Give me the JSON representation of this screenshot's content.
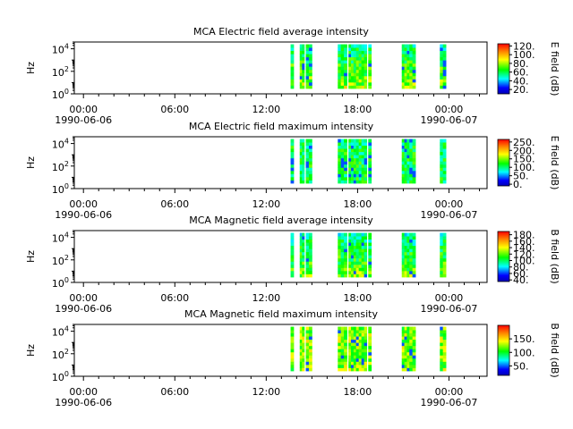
{
  "chart_data": [
    {
      "type": "heatmap",
      "title": "MCA  Electric field average intensity",
      "ylabel": "Hz",
      "y_scale": "log",
      "ylim": [
        1,
        40000
      ],
      "y_ticks": [
        {
          "v": 1,
          "b": "10",
          "e": "0"
        },
        {
          "v": 100,
          "b": "10",
          "e": "2"
        },
        {
          "v": 10000,
          "b": "10",
          "e": "4"
        }
      ],
      "x_ticks": [
        {
          "h": 0,
          "label": "00:00",
          "date": "1990-06-06"
        },
        {
          "h": 6,
          "label": "06:00",
          "date": ""
        },
        {
          "h": 12,
          "label": "12:00",
          "date": ""
        },
        {
          "h": 18,
          "label": "18:00",
          "date": ""
        },
        {
          "h": 24,
          "label": "00:00",
          "date": "1990-06-07"
        }
      ],
      "xlim_hours": [
        -0.6,
        26.5
      ],
      "colorbar": {
        "label": "E field (dB)",
        "min": 10,
        "max": 125,
        "ticks": [
          20,
          40,
          60,
          80,
          100,
          120
        ],
        "tick_labels": [
          "20.",
          "40.",
          "60.",
          "80.",
          "100.",
          "120."
        ]
      },
      "data_segments_hours": [
        [
          13.6,
          13.8
        ],
        [
          14.2,
          14.5
        ],
        [
          14.6,
          15.0
        ],
        [
          16.7,
          17.3
        ],
        [
          17.4,
          17.9
        ],
        [
          17.9,
          18.6
        ],
        [
          18.7,
          18.9
        ],
        [
          20.9,
          21.4
        ],
        [
          21.4,
          21.8
        ],
        [
          23.4,
          23.8
        ]
      ],
      "level": 68
    },
    {
      "type": "heatmap",
      "title": "MCA  Electric field maximum intensity",
      "ylabel": "Hz",
      "y_scale": "log",
      "ylim": [
        1,
        40000
      ],
      "y_ticks": [
        {
          "v": 1,
          "b": "10",
          "e": "0"
        },
        {
          "v": 100,
          "b": "10",
          "e": "2"
        },
        {
          "v": 10000,
          "b": "10",
          "e": "4"
        }
      ],
      "x_ticks": [
        {
          "h": 0,
          "label": "00:00",
          "date": "1990-06-06"
        },
        {
          "h": 6,
          "label": "06:00",
          "date": ""
        },
        {
          "h": 12,
          "label": "12:00",
          "date": ""
        },
        {
          "h": 18,
          "label": "18:00",
          "date": ""
        },
        {
          "h": 24,
          "label": "00:00",
          "date": "1990-06-07"
        }
      ],
      "xlim_hours": [
        -0.6,
        26.5
      ],
      "colorbar": {
        "label": "E field (dB)",
        "min": -10,
        "max": 265,
        "ticks": [
          0,
          50,
          100,
          150,
          200,
          250
        ],
        "tick_labels": [
          "0.",
          "50.",
          "100.",
          "150.",
          "200.",
          "250."
        ]
      },
      "data_segments_hours": [
        [
          13.6,
          13.8
        ],
        [
          14.2,
          14.5
        ],
        [
          14.6,
          15.0
        ],
        [
          16.7,
          17.3
        ],
        [
          17.4,
          17.9
        ],
        [
          17.9,
          18.6
        ],
        [
          18.7,
          18.9
        ],
        [
          20.9,
          21.4
        ],
        [
          21.4,
          21.8
        ],
        [
          23.4,
          23.8
        ]
      ],
      "level": 110
    },
    {
      "type": "heatmap",
      "title": "MCA  Magnetic field average intensity",
      "ylabel": "Hz",
      "y_scale": "log",
      "ylim": [
        1,
        40000
      ],
      "y_ticks": [
        {
          "v": 1,
          "b": "10",
          "e": "0"
        },
        {
          "v": 100,
          "b": "10",
          "e": "2"
        },
        {
          "v": 10000,
          "b": "10",
          "e": "4"
        }
      ],
      "x_ticks": [
        {
          "h": 0,
          "label": "00:00",
          "date": "1990-06-06"
        },
        {
          "h": 6,
          "label": "06:00",
          "date": ""
        },
        {
          "h": 12,
          "label": "12:00",
          "date": ""
        },
        {
          "h": 18,
          "label": "18:00",
          "date": ""
        },
        {
          "h": 24,
          "label": "00:00",
          "date": "1990-06-07"
        }
      ],
      "xlim_hours": [
        -0.6,
        26.5
      ],
      "colorbar": {
        "label": "B field (dB)",
        "min": 35,
        "max": 190,
        "ticks": [
          40,
          60,
          80,
          100,
          120,
          140,
          160,
          180
        ],
        "tick_labels": [
          "40.",
          "60.",
          "80.",
          "100.",
          "120.",
          "140.",
          "160.",
          "180."
        ]
      },
      "data_segments_hours": [
        [
          13.6,
          13.8
        ],
        [
          14.2,
          14.5
        ],
        [
          14.6,
          15.0
        ],
        [
          16.7,
          17.3
        ],
        [
          17.4,
          17.9
        ],
        [
          17.9,
          18.6
        ],
        [
          18.7,
          18.9
        ],
        [
          20.9,
          21.4
        ],
        [
          21.4,
          21.8
        ],
        [
          23.4,
          23.8
        ]
      ],
      "level": 108
    },
    {
      "type": "heatmap",
      "title": "MCA  Magnetic field maximum intensity",
      "ylabel": "Hz",
      "y_scale": "log",
      "ylim": [
        1,
        40000
      ],
      "y_ticks": [
        {
          "v": 1,
          "b": "10",
          "e": "0"
        },
        {
          "v": 100,
          "b": "10",
          "e": "2"
        },
        {
          "v": 10000,
          "b": "10",
          "e": "4"
        }
      ],
      "x_ticks": [
        {
          "h": 0,
          "label": "00:00",
          "date": "1990-06-06"
        },
        {
          "h": 6,
          "label": "06:00",
          "date": ""
        },
        {
          "h": 12,
          "label": "12:00",
          "date": ""
        },
        {
          "h": 18,
          "label": "18:00",
          "date": ""
        },
        {
          "h": 24,
          "label": "00:00",
          "date": "1990-06-07"
        }
      ],
      "xlim_hours": [
        -0.6,
        26.5
      ],
      "colorbar": {
        "label": "B field (dB)",
        "min": 15,
        "max": 200,
        "ticks": [
          50,
          100,
          150
        ],
        "tick_labels": [
          "50.",
          "100.",
          "150."
        ]
      },
      "data_segments_hours": [
        [
          13.6,
          13.8
        ],
        [
          14.2,
          14.5
        ],
        [
          14.6,
          15.0
        ],
        [
          16.7,
          17.3
        ],
        [
          17.4,
          17.9
        ],
        [
          17.9,
          18.6
        ],
        [
          18.7,
          18.9
        ],
        [
          20.9,
          21.4
        ],
        [
          21.4,
          21.8
        ],
        [
          23.4,
          23.8
        ]
      ],
      "level": 128
    }
  ]
}
